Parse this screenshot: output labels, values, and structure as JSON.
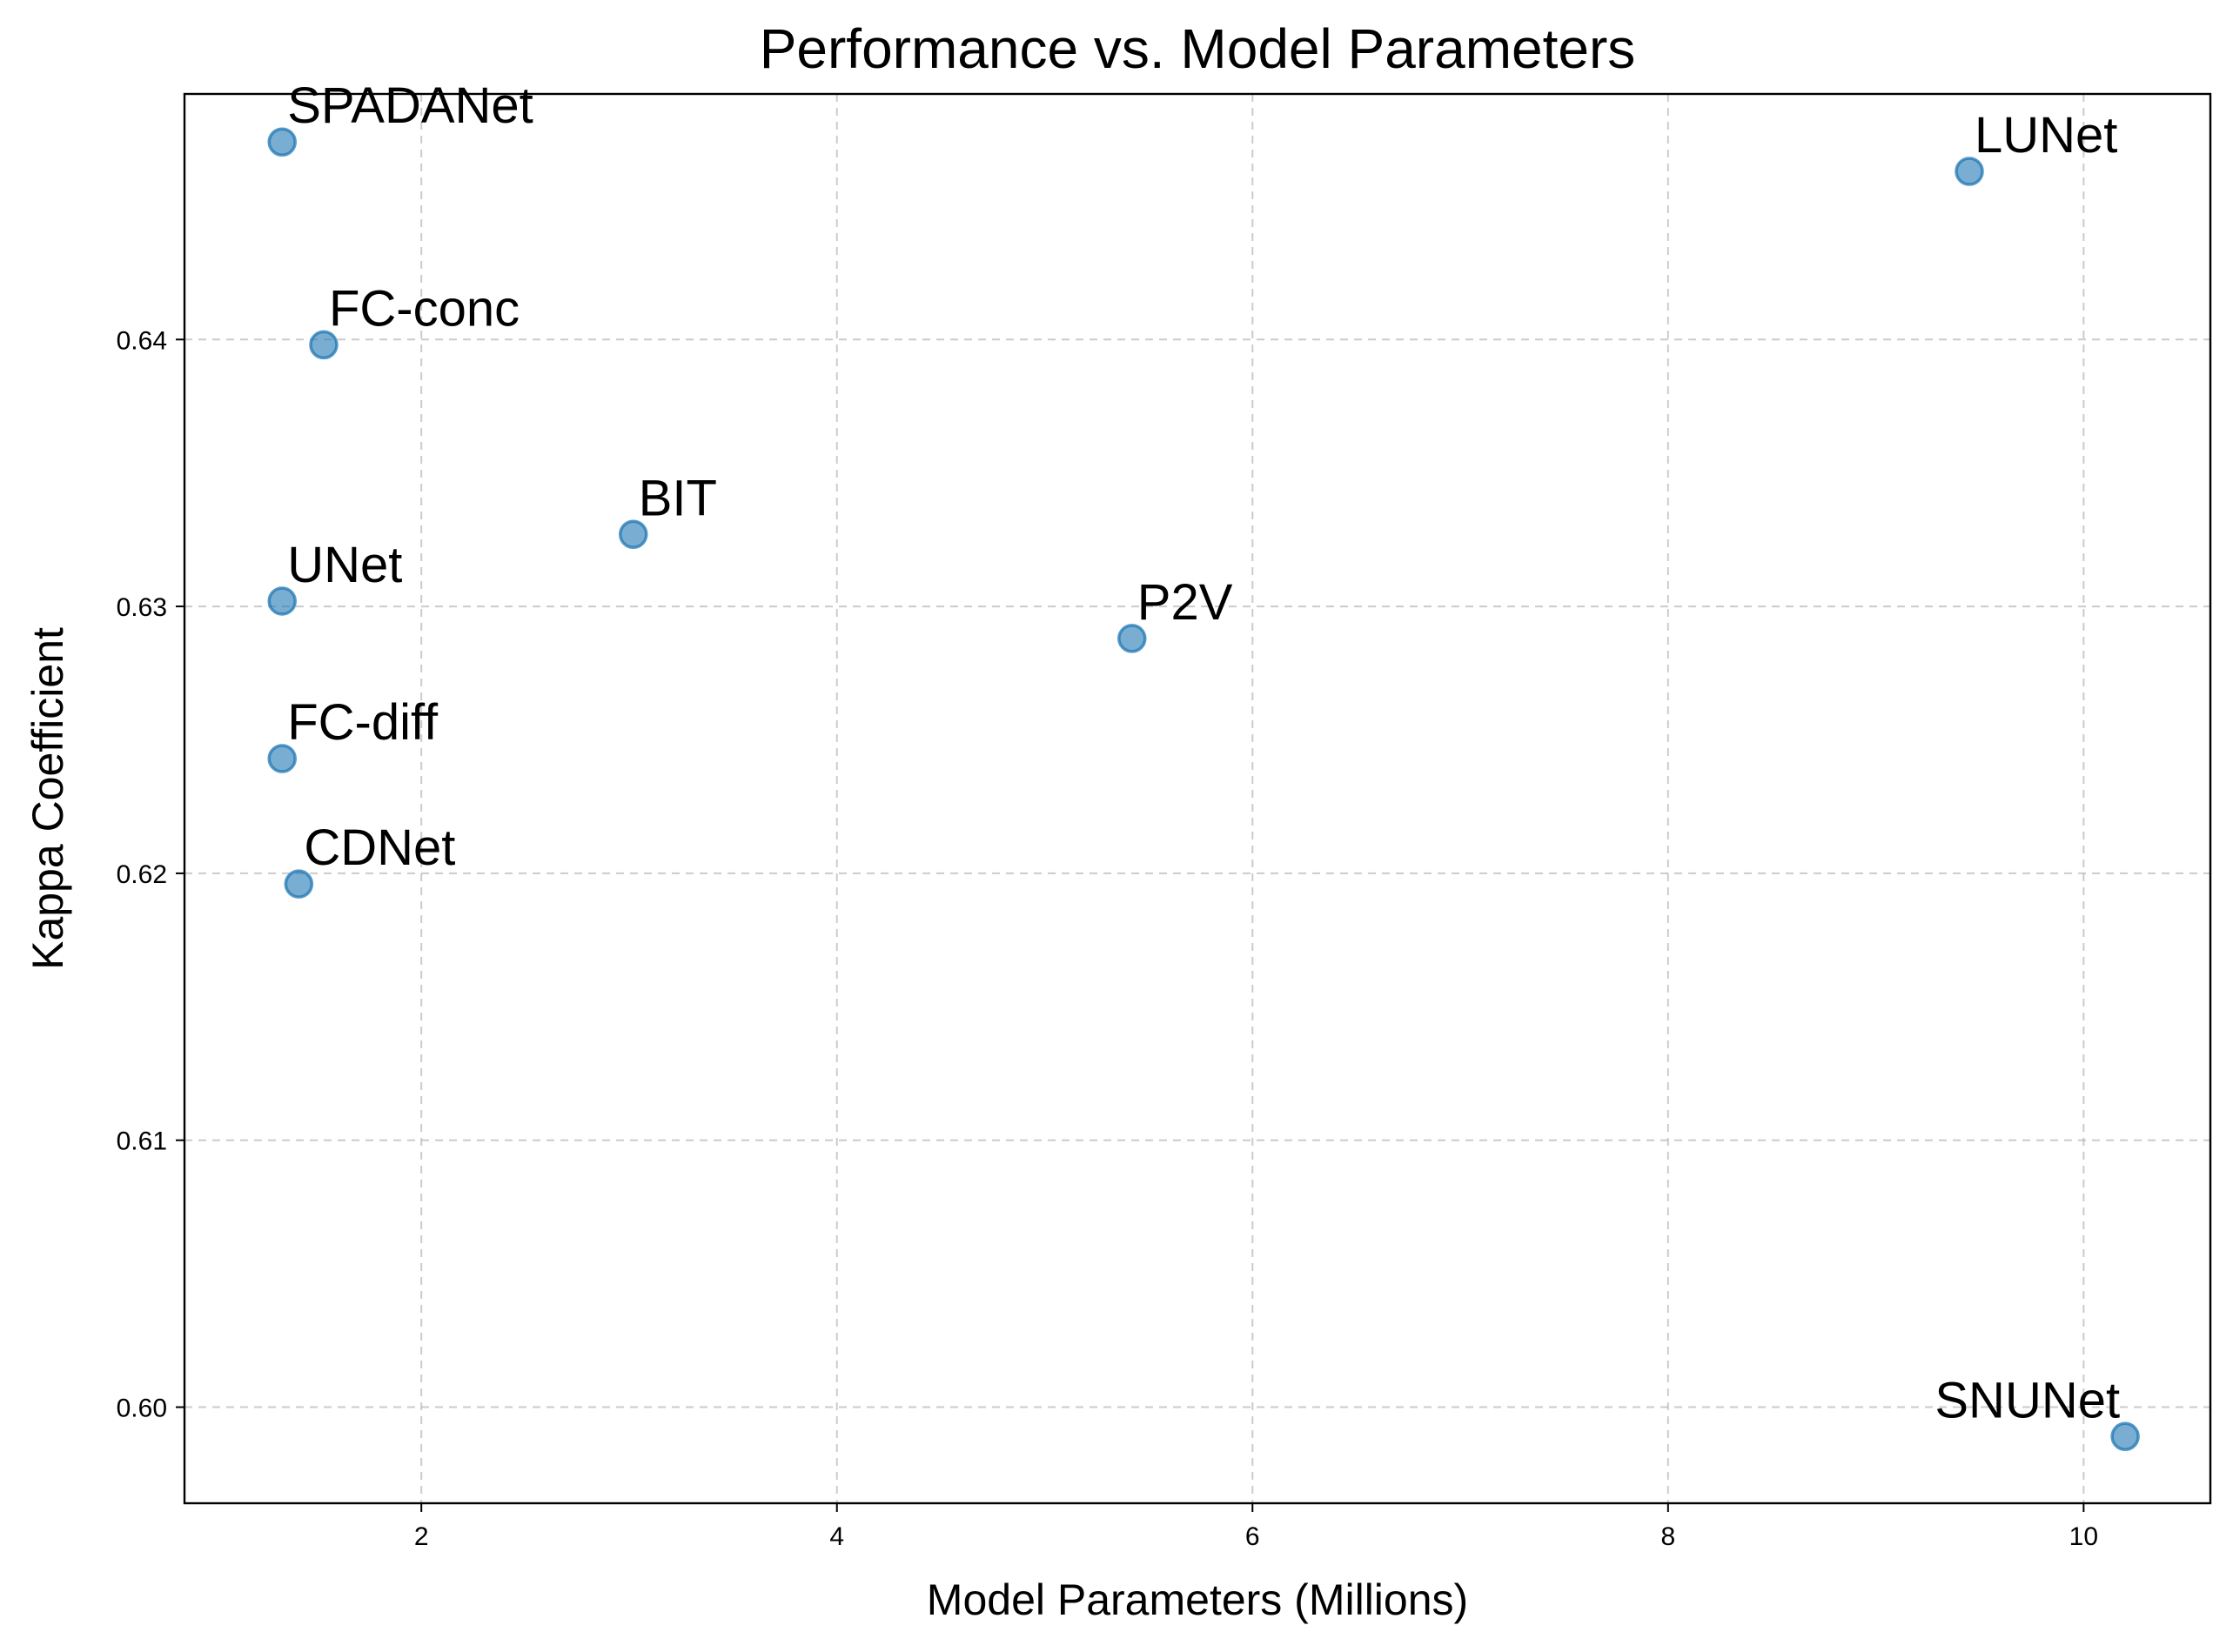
{
  "colors": {
    "background": "#ffffff",
    "marker_fill": "#1f77b4",
    "marker_edge": "#1f77b4",
    "grid": "#b0b0b0",
    "text": "#000000"
  },
  "chart_data": {
    "type": "scatter",
    "title": "Performance vs. Model Parameters",
    "xlabel": "Model Parameters (Millions)",
    "ylabel": "Kappa Coefficient",
    "xlim": [
      0.86,
      10.61
    ],
    "ylim": [
      0.5964,
      0.6492
    ],
    "xticks": [
      2,
      4,
      6,
      8,
      10
    ],
    "xtick_labels": [
      "2",
      "4",
      "6",
      "8",
      "10"
    ],
    "yticks": [
      0.6,
      0.61,
      0.62,
      0.63,
      0.64
    ],
    "ytick_labels": [
      "0.60",
      "0.61",
      "0.62",
      "0.63",
      "0.64"
    ],
    "grid": true,
    "marker_alpha": 0.6,
    "points": [
      {
        "label": "SPADANet",
        "x": 1.33,
        "y": 0.6474,
        "label_anchor": "start"
      },
      {
        "label": "LUNet",
        "x": 9.45,
        "y": 0.6463,
        "label_anchor": "start"
      },
      {
        "label": "FC-conc",
        "x": 1.53,
        "y": 0.6398,
        "label_anchor": "start"
      },
      {
        "label": "BIT",
        "x": 3.02,
        "y": 0.6327,
        "label_anchor": "start"
      },
      {
        "label": "UNet",
        "x": 1.33,
        "y": 0.6302,
        "label_anchor": "start"
      },
      {
        "label": "P2V",
        "x": 5.42,
        "y": 0.6288,
        "label_anchor": "start"
      },
      {
        "label": "FC-diff",
        "x": 1.33,
        "y": 0.6243,
        "label_anchor": "start"
      },
      {
        "label": "CDNet",
        "x": 1.41,
        "y": 0.6196,
        "label_anchor": "start"
      },
      {
        "label": "SNUNet",
        "x": 10.2,
        "y": 0.5989,
        "label_anchor": "end"
      }
    ]
  }
}
